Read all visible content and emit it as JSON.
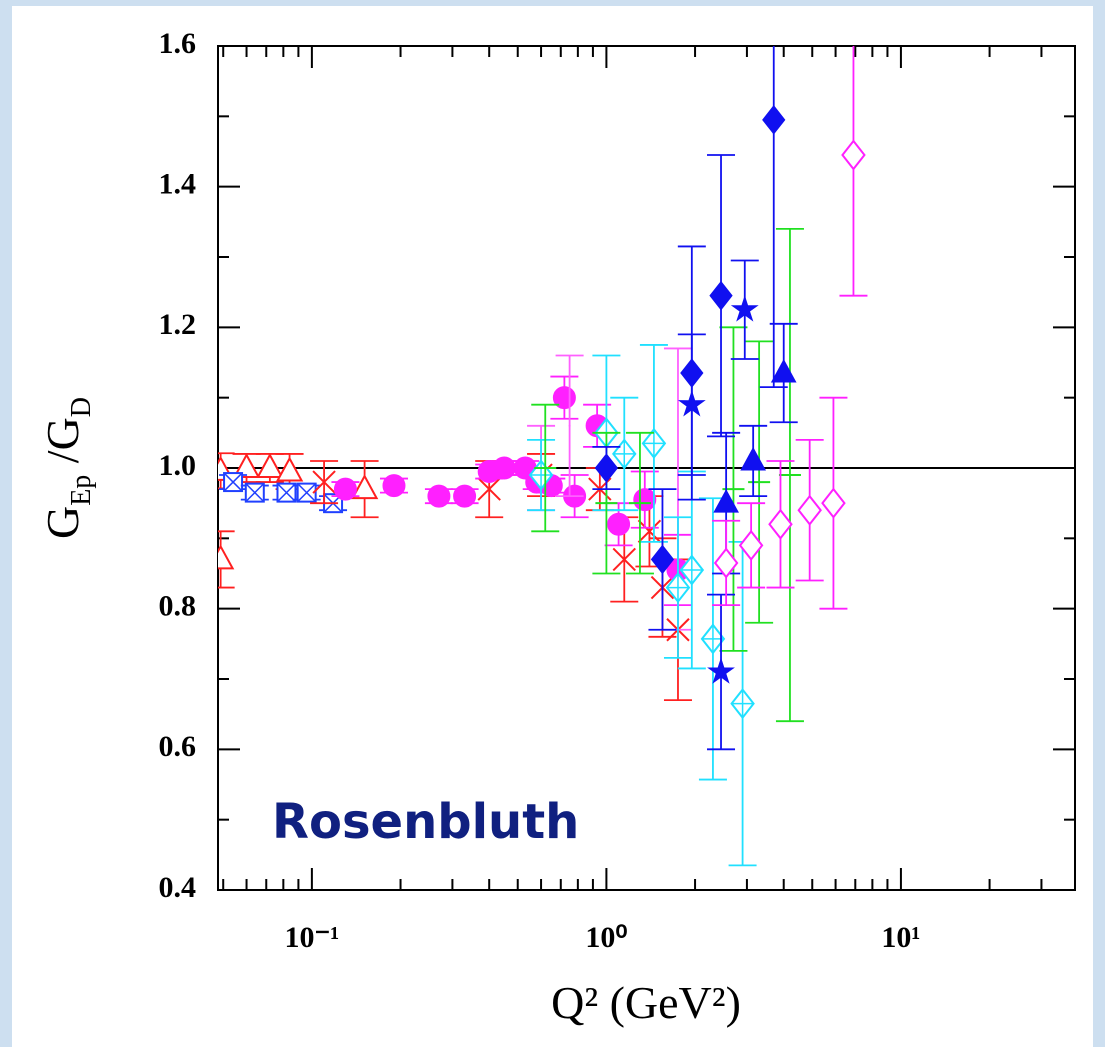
{
  "chart_data": {
    "type": "scatter",
    "x_label": "Q² (GeV²)",
    "y_label": [
      {
        "text": "G",
        "sub": "Ep"
      },
      {
        "text": " /G",
        "sub": "D"
      }
    ],
    "annotation": "Rosenbluth",
    "xscale": "log",
    "xlim": [
      0.048,
      39
    ],
    "ylim": [
      0.4,
      1.6
    ],
    "xticks": [
      {
        "value": 0.1,
        "label": "10⁻¹"
      },
      {
        "value": 1,
        "label": "10⁰"
      },
      {
        "value": 10,
        "label": "10¹"
      }
    ],
    "xticks_minor": [
      0.05,
      0.06,
      0.07,
      0.08,
      0.09,
      0.2,
      0.3,
      0.4,
      0.5,
      0.6,
      0.7,
      0.8,
      0.9,
      2,
      3,
      4,
      5,
      6,
      7,
      8,
      9,
      20,
      30
    ],
    "yticks": [
      0.4,
      0.6,
      0.8,
      {
        "value": 1,
        "label": "1.0"
      },
      1.2,
      1.4,
      1.6
    ],
    "yticks_minor": [
      0.5,
      0.7,
      0.9,
      1.1,
      1.3,
      1.5
    ],
    "hline": 1,
    "series": [
      {
        "color": "#ff2020",
        "marker": "triangle-open",
        "x": [
          0.049,
          0.049,
          0.06,
          0.072,
          0.084,
          0.151
        ],
        "values": [
          0.996,
          0.87,
          1.0,
          1.0,
          0.995,
          0.97
        ],
        "errors": [
          0.025,
          0.04,
          0.02,
          0.02,
          0.025,
          0.04
        ]
      },
      {
        "color": "#2040ff",
        "marker": "square-x",
        "x": [
          0.054,
          0.064,
          0.082,
          0.096,
          0.118
        ],
        "values": [
          0.98,
          0.965,
          0.965,
          0.965,
          0.95
        ],
        "errors": [
          0.01,
          0.01,
          0.01,
          0.01,
          0.01
        ]
      },
      {
        "color": "#ff2020",
        "marker": "x",
        "x": [
          0.11,
          0.4,
          0.6,
          0.95,
          1.15,
          1.4,
          1.55,
          1.75
        ],
        "values": [
          0.98,
          0.97,
          0.99,
          0.97,
          0.87,
          0.91,
          0.83,
          0.77
        ],
        "errors": [
          0.03,
          0.04,
          0.03,
          0.03,
          0.06,
          0.05,
          0.07,
          0.1
        ]
      },
      {
        "color": "#ff20ff",
        "marker": "circle",
        "x": [
          0.13,
          0.19,
          0.27,
          0.33,
          0.4,
          0.45,
          0.53,
          0.58,
          0.65,
          0.72,
          0.78,
          0.93,
          1.1,
          1.35,
          1.75
        ],
        "values": [
          0.97,
          0.975,
          0.96,
          0.96,
          0.995,
          1.0,
          1.0,
          0.98,
          0.975,
          1.1,
          0.96,
          1.06,
          0.92,
          0.955,
          0.855
        ],
        "errors": [
          0.01,
          0.01,
          0.01,
          0.01,
          0.01,
          0.01,
          0.01,
          0.01,
          0.01,
          0.03,
          0.03,
          0.03,
          0.03,
          0.04,
          0.05
        ]
      },
      {
        "color": "#ff60ff",
        "marker": "none",
        "x": [
          0.6,
          0.75,
          1.75
        ],
        "values": [
          1.0,
          1.06,
          0.97
        ],
        "errors": [
          0.06,
          0.1,
          0.2
        ]
      },
      {
        "color": "#20e0ff",
        "marker": "diamond-plus",
        "x": [
          0.6,
          1.0,
          1.15,
          1.45,
          1.75,
          1.95,
          2.3,
          2.9
        ],
        "values": [
          0.99,
          1.05,
          1.02,
          1.035,
          0.83,
          0.855,
          0.757,
          0.665
        ],
        "errors": [
          0.05,
          0.11,
          0.08,
          0.14,
          0.1,
          0.14,
          0.2,
          0.23
        ]
      },
      {
        "color": "#20e020",
        "marker": "plus",
        "x": [
          0.62,
          1.0,
          1.3,
          2.7,
          3.3,
          4.2
        ],
        "values": [
          1.0,
          0.95,
          0.95,
          0.97,
          0.98,
          0.99
        ],
        "errors": [
          0.09,
          0.1,
          0.1,
          0.23,
          0.2,
          0.35
        ]
      },
      {
        "color": "#1010f0",
        "marker": "diamond",
        "x": [
          1.0,
          1.55,
          1.95,
          2.45,
          3.7
        ],
        "values": [
          1.0,
          0.87,
          1.135,
          1.245,
          1.495
        ],
        "errors": [
          0.03,
          0.1,
          0.18,
          0.2,
          0.38
        ]
      },
      {
        "color": "#1010f0",
        "marker": "star",
        "x": [
          1.95,
          2.45,
          2.95
        ],
        "values": [
          1.09,
          0.71,
          1.225
        ],
        "errors": [
          0.1,
          0.11,
          0.07
        ]
      },
      {
        "color": "#1010f0",
        "marker": "triangle",
        "x": [
          2.55,
          3.15,
          4.0
        ],
        "values": [
          0.95,
          1.01,
          1.135
        ],
        "errors": [
          0.1,
          0.05,
          0.07
        ]
      },
      {
        "color": "#ff20ff",
        "marker": "diamond-open",
        "x": [
          2.55,
          3.1,
          3.9,
          4.9,
          5.9,
          6.9
        ],
        "values": [
          0.865,
          0.89,
          0.92,
          0.94,
          0.95,
          1.445
        ],
        "errors": [
          0.06,
          0.06,
          0.09,
          0.1,
          0.15,
          0.2
        ]
      }
    ]
  }
}
